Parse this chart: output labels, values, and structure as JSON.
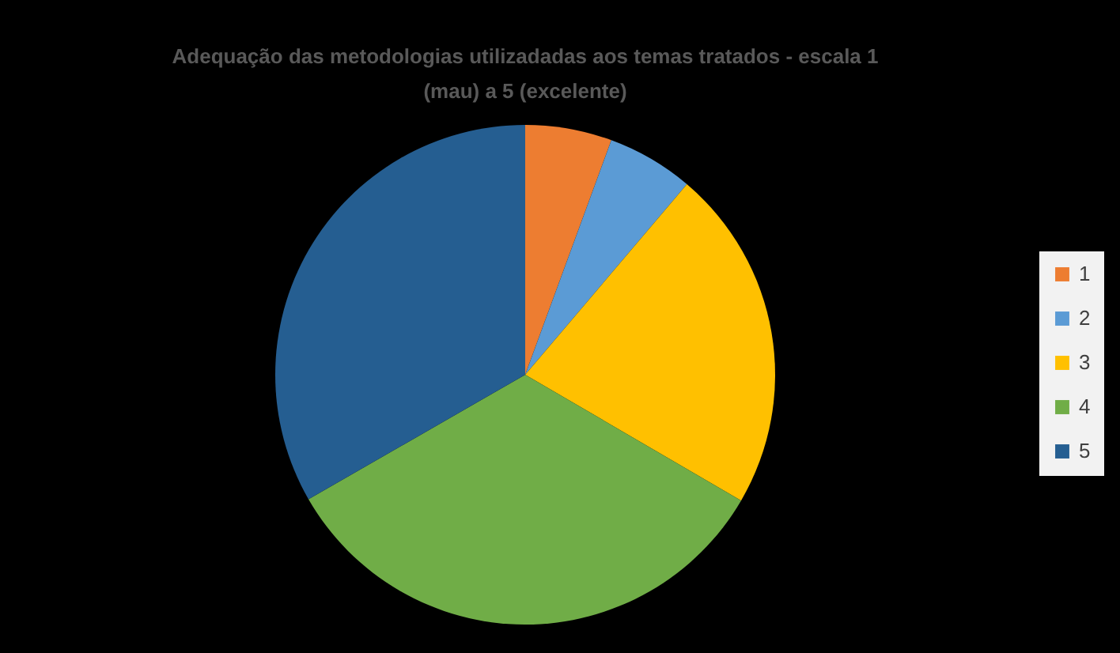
{
  "chart_data": {
    "type": "pie",
    "title": "Adequação das metodologias utilizadadas aos temas tratados - escala 1 (mau) a 5 (excelente)",
    "categories": [
      "1",
      "2",
      "3",
      "4",
      "5"
    ],
    "values": [
      5.6,
      5.6,
      22.2,
      33.3,
      33.3
    ],
    "colors": [
      "#ed7d31",
      "#5b9bd5",
      "#ffc000",
      "#70ad47",
      "#255e91"
    ],
    "legend": "right"
  }
}
